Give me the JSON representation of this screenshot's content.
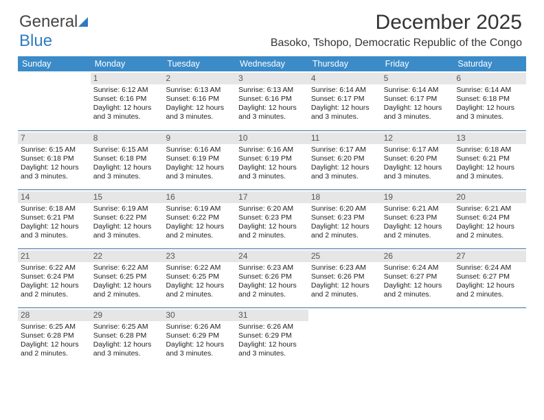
{
  "logo": {
    "text1": "General",
    "text2": "Blue"
  },
  "title": "December 2025",
  "subtitle": "Basoko, Tshopo, Democratic Republic of the Congo",
  "colors": {
    "header_bg": "#3b8bc8",
    "header_text": "#ffffff",
    "daynum_bg": "#e6e6e6",
    "daynum_text": "#555555",
    "week_border": "#3b6fa0",
    "body_text": "#222222",
    "background": "#ffffff"
  },
  "dow": [
    "Sunday",
    "Monday",
    "Tuesday",
    "Wednesday",
    "Thursday",
    "Friday",
    "Saturday"
  ],
  "weeks": [
    [
      {
        "n": "",
        "sr": "",
        "ss": "",
        "dl1": "",
        "dl2": ""
      },
      {
        "n": "1",
        "sr": "Sunrise: 6:12 AM",
        "ss": "Sunset: 6:16 PM",
        "dl1": "Daylight: 12 hours",
        "dl2": "and 3 minutes."
      },
      {
        "n": "2",
        "sr": "Sunrise: 6:13 AM",
        "ss": "Sunset: 6:16 PM",
        "dl1": "Daylight: 12 hours",
        "dl2": "and 3 minutes."
      },
      {
        "n": "3",
        "sr": "Sunrise: 6:13 AM",
        "ss": "Sunset: 6:16 PM",
        "dl1": "Daylight: 12 hours",
        "dl2": "and 3 minutes."
      },
      {
        "n": "4",
        "sr": "Sunrise: 6:14 AM",
        "ss": "Sunset: 6:17 PM",
        "dl1": "Daylight: 12 hours",
        "dl2": "and 3 minutes."
      },
      {
        "n": "5",
        "sr": "Sunrise: 6:14 AM",
        "ss": "Sunset: 6:17 PM",
        "dl1": "Daylight: 12 hours",
        "dl2": "and 3 minutes."
      },
      {
        "n": "6",
        "sr": "Sunrise: 6:14 AM",
        "ss": "Sunset: 6:18 PM",
        "dl1": "Daylight: 12 hours",
        "dl2": "and 3 minutes."
      }
    ],
    [
      {
        "n": "7",
        "sr": "Sunrise: 6:15 AM",
        "ss": "Sunset: 6:18 PM",
        "dl1": "Daylight: 12 hours",
        "dl2": "and 3 minutes."
      },
      {
        "n": "8",
        "sr": "Sunrise: 6:15 AM",
        "ss": "Sunset: 6:18 PM",
        "dl1": "Daylight: 12 hours",
        "dl2": "and 3 minutes."
      },
      {
        "n": "9",
        "sr": "Sunrise: 6:16 AM",
        "ss": "Sunset: 6:19 PM",
        "dl1": "Daylight: 12 hours",
        "dl2": "and 3 minutes."
      },
      {
        "n": "10",
        "sr": "Sunrise: 6:16 AM",
        "ss": "Sunset: 6:19 PM",
        "dl1": "Daylight: 12 hours",
        "dl2": "and 3 minutes."
      },
      {
        "n": "11",
        "sr": "Sunrise: 6:17 AM",
        "ss": "Sunset: 6:20 PM",
        "dl1": "Daylight: 12 hours",
        "dl2": "and 3 minutes."
      },
      {
        "n": "12",
        "sr": "Sunrise: 6:17 AM",
        "ss": "Sunset: 6:20 PM",
        "dl1": "Daylight: 12 hours",
        "dl2": "and 3 minutes."
      },
      {
        "n": "13",
        "sr": "Sunrise: 6:18 AM",
        "ss": "Sunset: 6:21 PM",
        "dl1": "Daylight: 12 hours",
        "dl2": "and 3 minutes."
      }
    ],
    [
      {
        "n": "14",
        "sr": "Sunrise: 6:18 AM",
        "ss": "Sunset: 6:21 PM",
        "dl1": "Daylight: 12 hours",
        "dl2": "and 3 minutes."
      },
      {
        "n": "15",
        "sr": "Sunrise: 6:19 AM",
        "ss": "Sunset: 6:22 PM",
        "dl1": "Daylight: 12 hours",
        "dl2": "and 3 minutes."
      },
      {
        "n": "16",
        "sr": "Sunrise: 6:19 AM",
        "ss": "Sunset: 6:22 PM",
        "dl1": "Daylight: 12 hours",
        "dl2": "and 2 minutes."
      },
      {
        "n": "17",
        "sr": "Sunrise: 6:20 AM",
        "ss": "Sunset: 6:23 PM",
        "dl1": "Daylight: 12 hours",
        "dl2": "and 2 minutes."
      },
      {
        "n": "18",
        "sr": "Sunrise: 6:20 AM",
        "ss": "Sunset: 6:23 PM",
        "dl1": "Daylight: 12 hours",
        "dl2": "and 2 minutes."
      },
      {
        "n": "19",
        "sr": "Sunrise: 6:21 AM",
        "ss": "Sunset: 6:23 PM",
        "dl1": "Daylight: 12 hours",
        "dl2": "and 2 minutes."
      },
      {
        "n": "20",
        "sr": "Sunrise: 6:21 AM",
        "ss": "Sunset: 6:24 PM",
        "dl1": "Daylight: 12 hours",
        "dl2": "and 2 minutes."
      }
    ],
    [
      {
        "n": "21",
        "sr": "Sunrise: 6:22 AM",
        "ss": "Sunset: 6:24 PM",
        "dl1": "Daylight: 12 hours",
        "dl2": "and 2 minutes."
      },
      {
        "n": "22",
        "sr": "Sunrise: 6:22 AM",
        "ss": "Sunset: 6:25 PM",
        "dl1": "Daylight: 12 hours",
        "dl2": "and 2 minutes."
      },
      {
        "n": "23",
        "sr": "Sunrise: 6:22 AM",
        "ss": "Sunset: 6:25 PM",
        "dl1": "Daylight: 12 hours",
        "dl2": "and 2 minutes."
      },
      {
        "n": "24",
        "sr": "Sunrise: 6:23 AM",
        "ss": "Sunset: 6:26 PM",
        "dl1": "Daylight: 12 hours",
        "dl2": "and 2 minutes."
      },
      {
        "n": "25",
        "sr": "Sunrise: 6:23 AM",
        "ss": "Sunset: 6:26 PM",
        "dl1": "Daylight: 12 hours",
        "dl2": "and 2 minutes."
      },
      {
        "n": "26",
        "sr": "Sunrise: 6:24 AM",
        "ss": "Sunset: 6:27 PM",
        "dl1": "Daylight: 12 hours",
        "dl2": "and 2 minutes."
      },
      {
        "n": "27",
        "sr": "Sunrise: 6:24 AM",
        "ss": "Sunset: 6:27 PM",
        "dl1": "Daylight: 12 hours",
        "dl2": "and 2 minutes."
      }
    ],
    [
      {
        "n": "28",
        "sr": "Sunrise: 6:25 AM",
        "ss": "Sunset: 6:28 PM",
        "dl1": "Daylight: 12 hours",
        "dl2": "and 2 minutes."
      },
      {
        "n": "29",
        "sr": "Sunrise: 6:25 AM",
        "ss": "Sunset: 6:28 PM",
        "dl1": "Daylight: 12 hours",
        "dl2": "and 3 minutes."
      },
      {
        "n": "30",
        "sr": "Sunrise: 6:26 AM",
        "ss": "Sunset: 6:29 PM",
        "dl1": "Daylight: 12 hours",
        "dl2": "and 3 minutes."
      },
      {
        "n": "31",
        "sr": "Sunrise: 6:26 AM",
        "ss": "Sunset: 6:29 PM",
        "dl1": "Daylight: 12 hours",
        "dl2": "and 3 minutes."
      },
      {
        "n": "",
        "sr": "",
        "ss": "",
        "dl1": "",
        "dl2": ""
      },
      {
        "n": "",
        "sr": "",
        "ss": "",
        "dl1": "",
        "dl2": ""
      },
      {
        "n": "",
        "sr": "",
        "ss": "",
        "dl1": "",
        "dl2": ""
      }
    ]
  ]
}
